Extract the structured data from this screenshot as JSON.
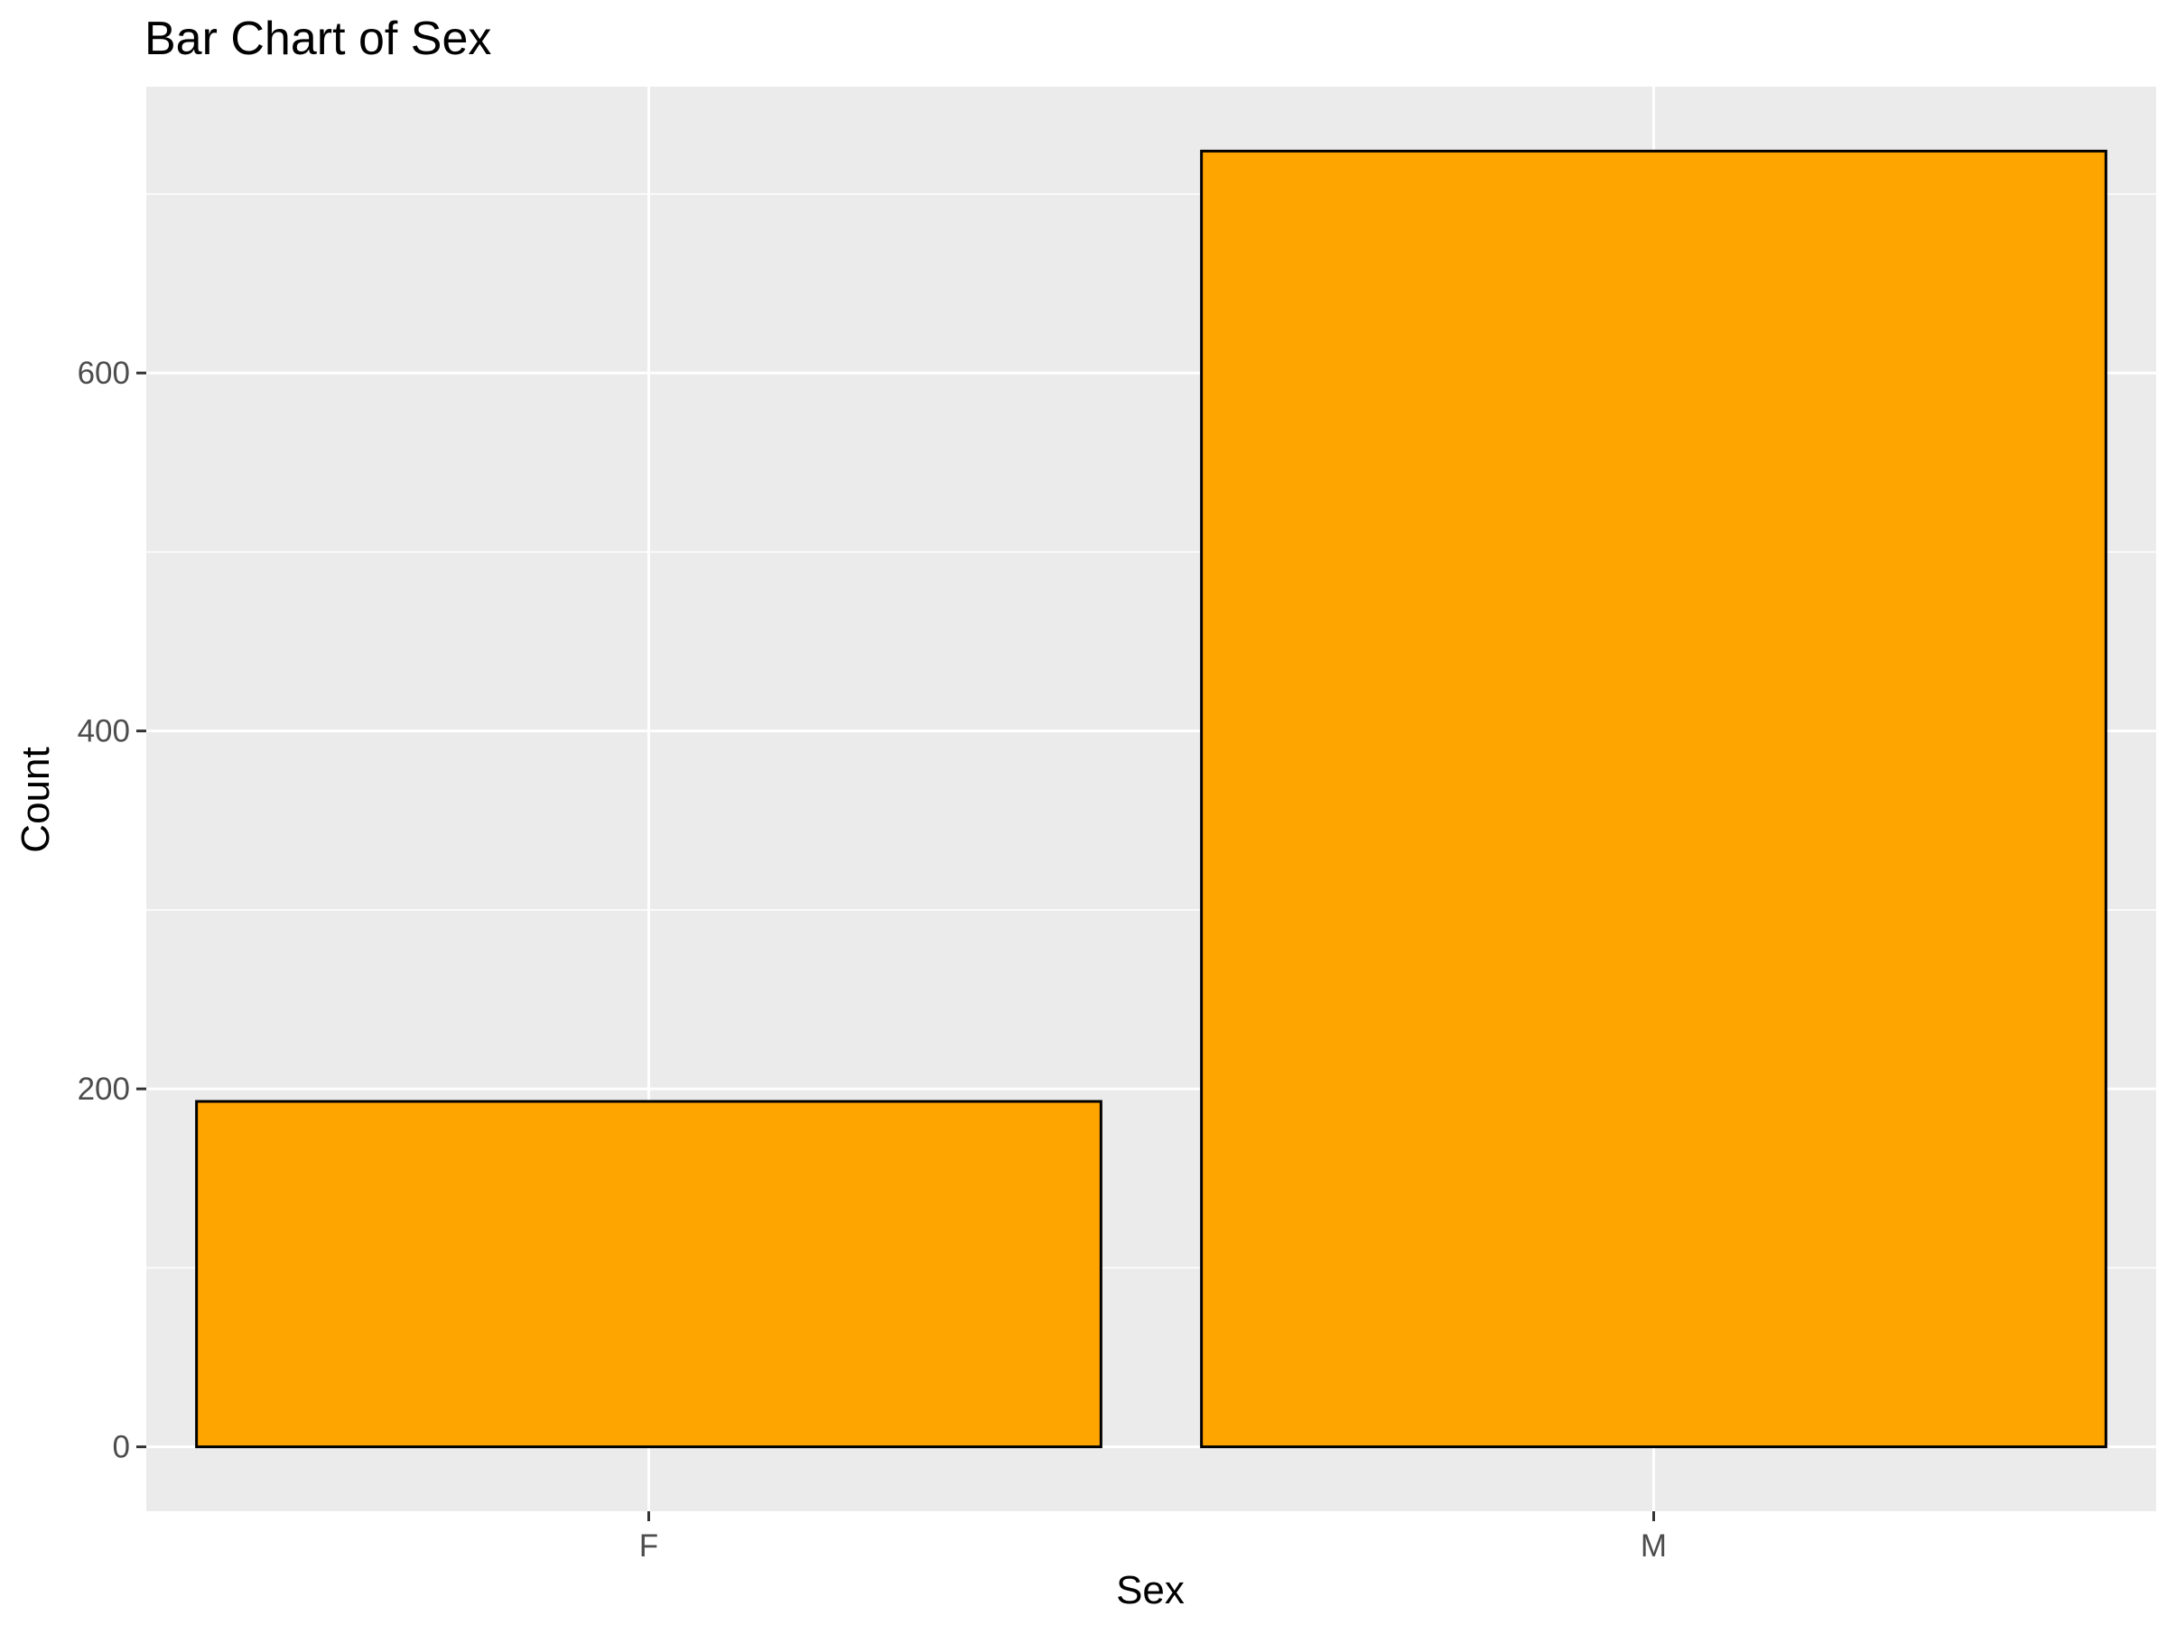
{
  "chart_data": {
    "type": "bar",
    "title": "Bar Chart of Sex",
    "xlabel": "Sex",
    "ylabel": "Count",
    "categories": [
      "F",
      "M"
    ],
    "values": [
      193,
      724
    ],
    "ylim": [
      -36,
      760
    ],
    "yticks": [
      0,
      200,
      400,
      600
    ],
    "ytick_labels": [
      "0",
      "200",
      "400",
      "600"
    ],
    "grid": true,
    "legend": "none",
    "colors": {
      "panel_background": "#EBEBEB",
      "grid": "#FFFFFF",
      "bar_fill": "#FFA500",
      "bar_outline": "#000000",
      "tick_text": "#4D4D4D",
      "tick_mark": "#333333"
    }
  }
}
